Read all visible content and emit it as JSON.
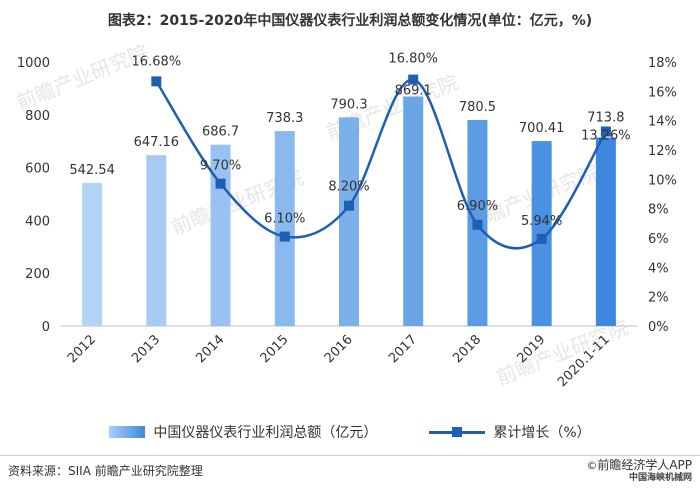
{
  "title": "图表2：2015-2020年中国仪器仪表行业利润总额变化情况(单位：亿元，%)",
  "source": "资料来源：SIIA 前瞻产业研究院整理",
  "brand": "前瞻经济学人APP",
  "brand_mark": "©",
  "sub_brand": "中国海峡机械网",
  "watermark": "前瞻产业研究院",
  "chart_data": {
    "type": "bar+line",
    "categories": [
      "2012",
      "2013",
      "2014",
      "2015",
      "2016",
      "2017",
      "2018",
      "2019",
      "2020.1-11"
    ],
    "series": [
      {
        "name": "中国仪器仪表行业利润总额（亿元）",
        "type": "bar",
        "axis": "left",
        "values": [
          542.54,
          647.16,
          686.7,
          738.3,
          790.3,
          869.1,
          780.5,
          700.41,
          713.8
        ],
        "labels": [
          "542.54",
          "647.16",
          "686.7",
          "738.3",
          "790.3",
          "869.1",
          "780.5",
          "700.41",
          "713.8"
        ]
      },
      {
        "name": "累计增长（%）",
        "type": "line",
        "axis": "right",
        "values": [
          null,
          16.68,
          9.7,
          6.1,
          8.2,
          16.8,
          6.9,
          5.94,
          13.26
        ],
        "labels": [
          "",
          "16.68%",
          "9.70%",
          "6.10%",
          "8.20%",
          "16.80%",
          "6.90%",
          "5.94%",
          "13.26%"
        ]
      }
    ],
    "left_axis": {
      "ylim": [
        0,
        1000
      ],
      "ticks": [
        "0",
        "200",
        "400",
        "600",
        "800",
        "1000"
      ]
    },
    "right_axis": {
      "ylim": [
        0,
        18
      ],
      "ticks": [
        "0%",
        "2%",
        "4%",
        "6%",
        "8%",
        "10%",
        "12%",
        "14%",
        "16%",
        "18%"
      ]
    },
    "bar_colors": [
      "#b3d4f7",
      "#a5cbf4",
      "#97c2f1",
      "#89b9ee",
      "#7bb0eb",
      "#6aa5e7",
      "#5a9be4",
      "#4a91e1",
      "#3d88de"
    ],
    "line_color": "#1e5fb4",
    "legend_position": "bottom",
    "grid": false
  }
}
